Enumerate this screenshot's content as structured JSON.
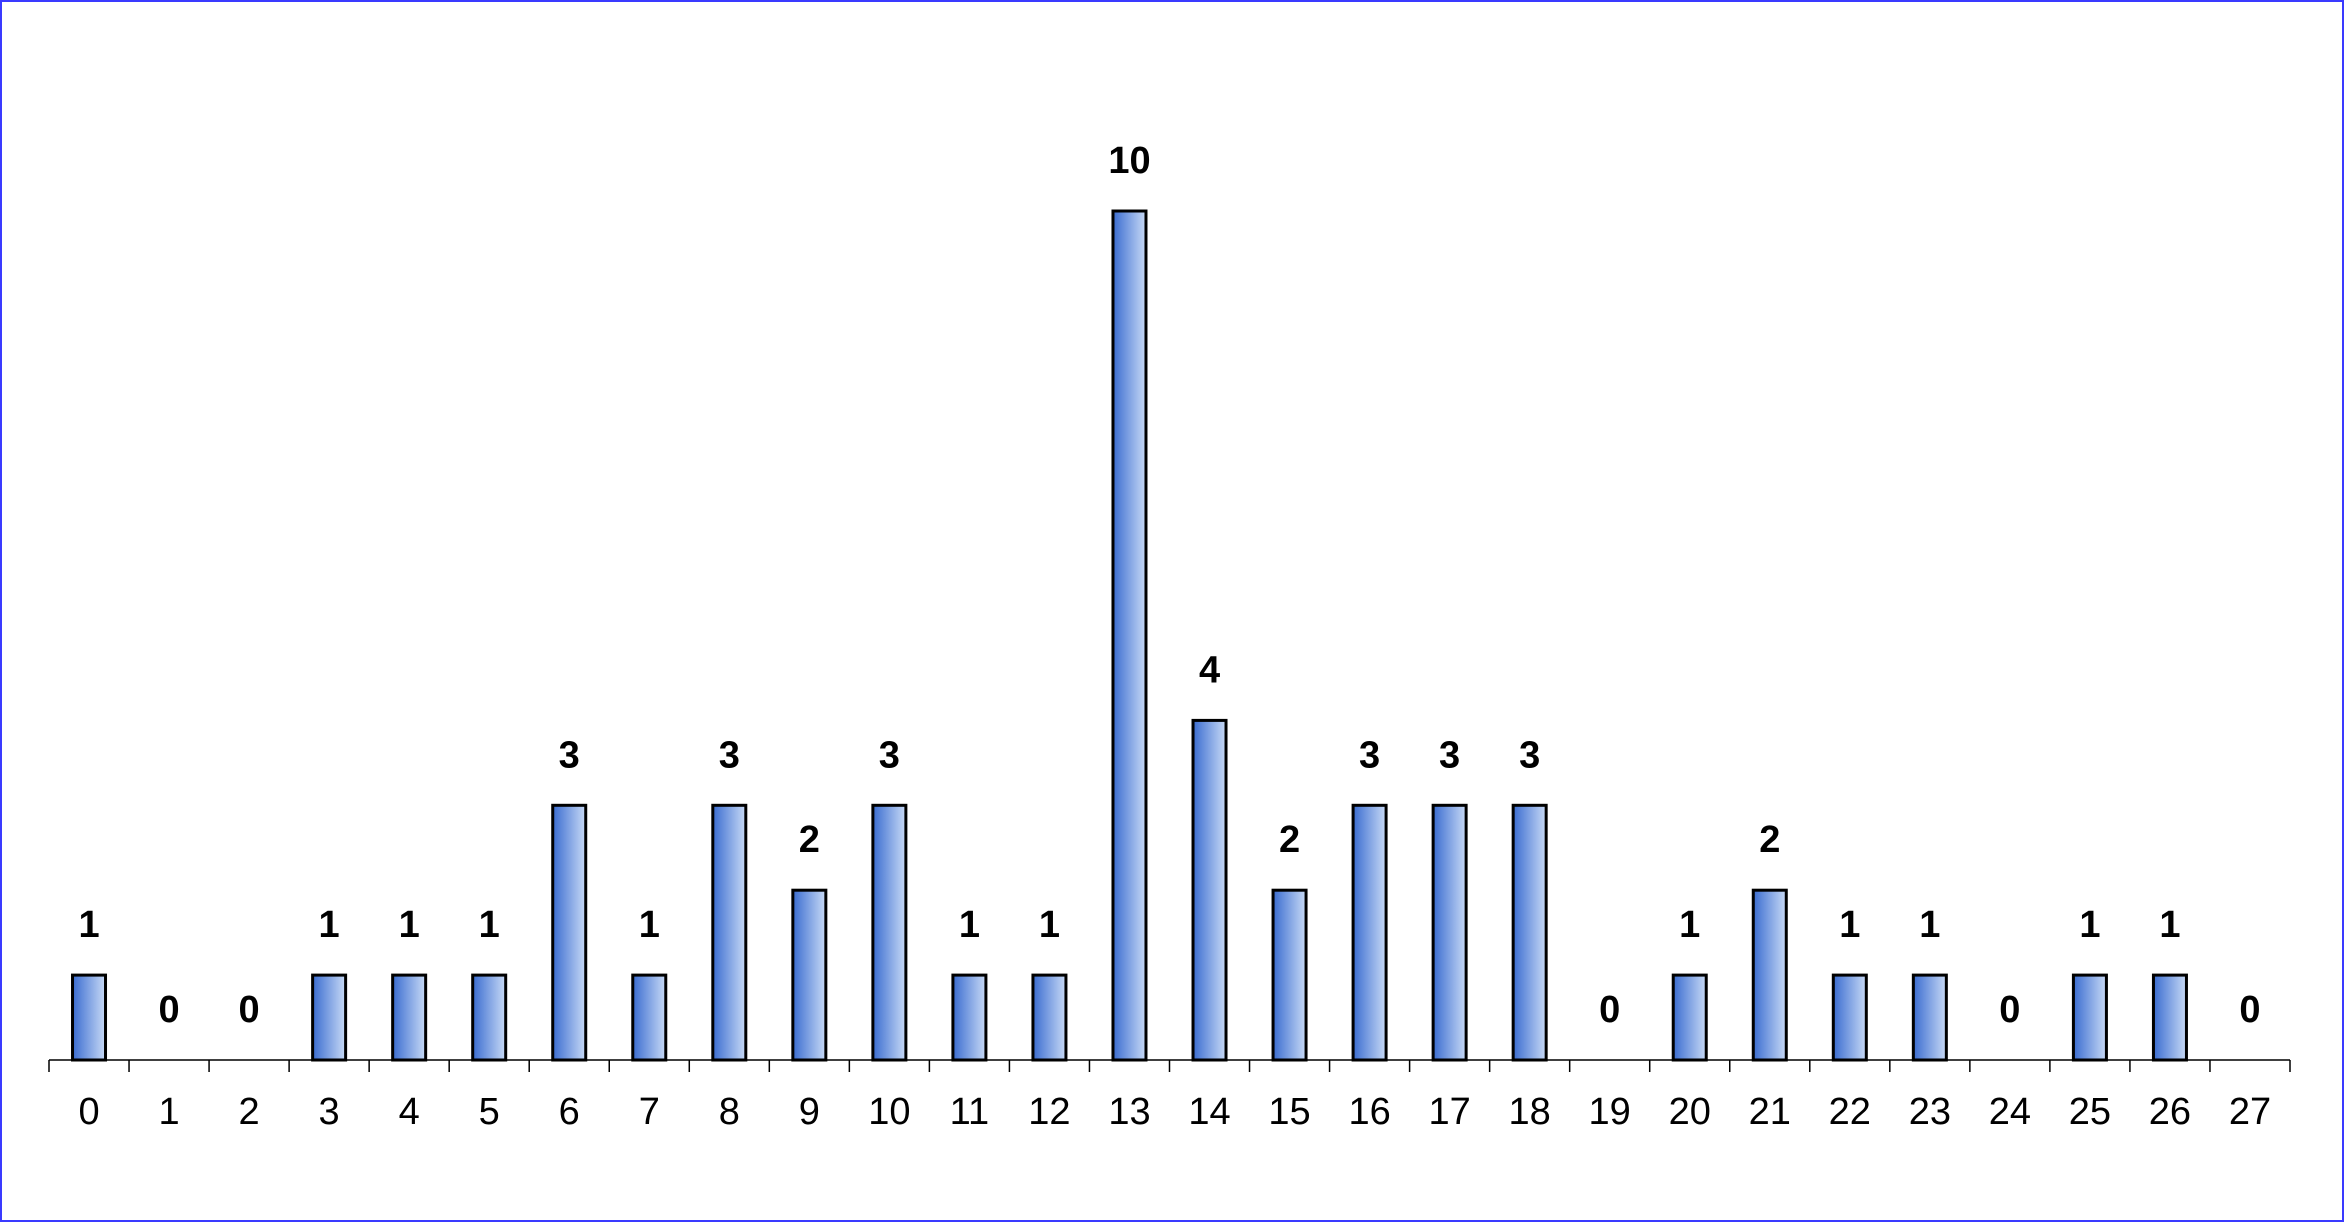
{
  "chart_data": {
    "type": "bar",
    "categories": [
      "0",
      "1",
      "2",
      "3",
      "4",
      "5",
      "6",
      "7",
      "8",
      "9",
      "10",
      "11",
      "12",
      "13",
      "14",
      "15",
      "16",
      "17",
      "18",
      "19",
      "20",
      "21",
      "22",
      "23",
      "24",
      "25",
      "26",
      "27"
    ],
    "values": [
      1,
      0,
      0,
      1,
      1,
      1,
      3,
      1,
      3,
      2,
      3,
      1,
      1,
      10,
      4,
      2,
      3,
      3,
      3,
      0,
      1,
      2,
      1,
      1,
      0,
      1,
      1,
      0
    ],
    "color": "#4a7fd8"
  }
}
